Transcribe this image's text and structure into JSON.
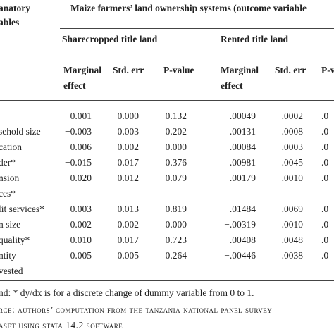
{
  "header": {
    "stub": [
      "anatory",
      "ables"
    ],
    "title": "Maize farmers’ land ownership systems (outcome variable",
    "groups": [
      "Sharecropped title land",
      "Rented title land"
    ],
    "columns": [
      [
        "Marginal",
        "effect"
      ],
      [
        "Std. err"
      ],
      [
        "P-value"
      ],
      [
        "Marginal",
        "effect"
      ],
      [
        "Std. err"
      ],
      [
        "P-v"
      ]
    ]
  },
  "table": {
    "rows": [
      {
        "label": [],
        "cells": [
          "−0.001",
          "0.000",
          "0.132",
          "−.00049",
          ".0002",
          ".0"
        ]
      },
      {
        "label": [
          "sehold size"
        ],
        "cells": [
          "−0.003",
          "0.003",
          "0.202",
          ".00131",
          ".0008",
          ".0"
        ]
      },
      {
        "label": [
          "cation"
        ],
        "cells": [
          "0.006",
          "0.002",
          "0.000",
          ".00084",
          ".0003",
          ".0"
        ]
      },
      {
        "label": [
          "der*"
        ],
        "cells": [
          "−0.015",
          "0.017",
          "0.376",
          ".00981",
          ".0045",
          ".0"
        ]
      },
      {
        "label": [
          "nsion",
          "ces*"
        ],
        "cells": [
          "0.020",
          "0.012",
          "0.079",
          "−.00179",
          ".0010",
          ".0"
        ]
      },
      {
        "label": [
          "lit services*"
        ],
        "cells": [
          "0.003",
          "0.013",
          "0.819",
          ".01484",
          ".0069",
          ".0"
        ]
      },
      {
        "label": [
          "n size"
        ],
        "cells": [
          "0.002",
          "0.002",
          "0.000",
          "−.00319",
          ".0010",
          ".0"
        ]
      },
      {
        "label": [
          "quality*"
        ],
        "cells": [
          "0.010",
          "0.017",
          "0.723",
          "−.00408",
          ".0048",
          ".0"
        ]
      },
      {
        "label": [
          "ntity",
          "vested"
        ],
        "cells": [
          "0.005",
          "0.005",
          "0.264",
          "−.00446",
          ".0038",
          ".0"
        ]
      }
    ]
  },
  "footer": {
    "note": "nd: * dy/dx is for a discrete change of dummy variable from 0 to 1.",
    "source": [
      "rce: authors’ computation from the tanzania national panel survey",
      "aset using stata 14.2 software"
    ]
  }
}
